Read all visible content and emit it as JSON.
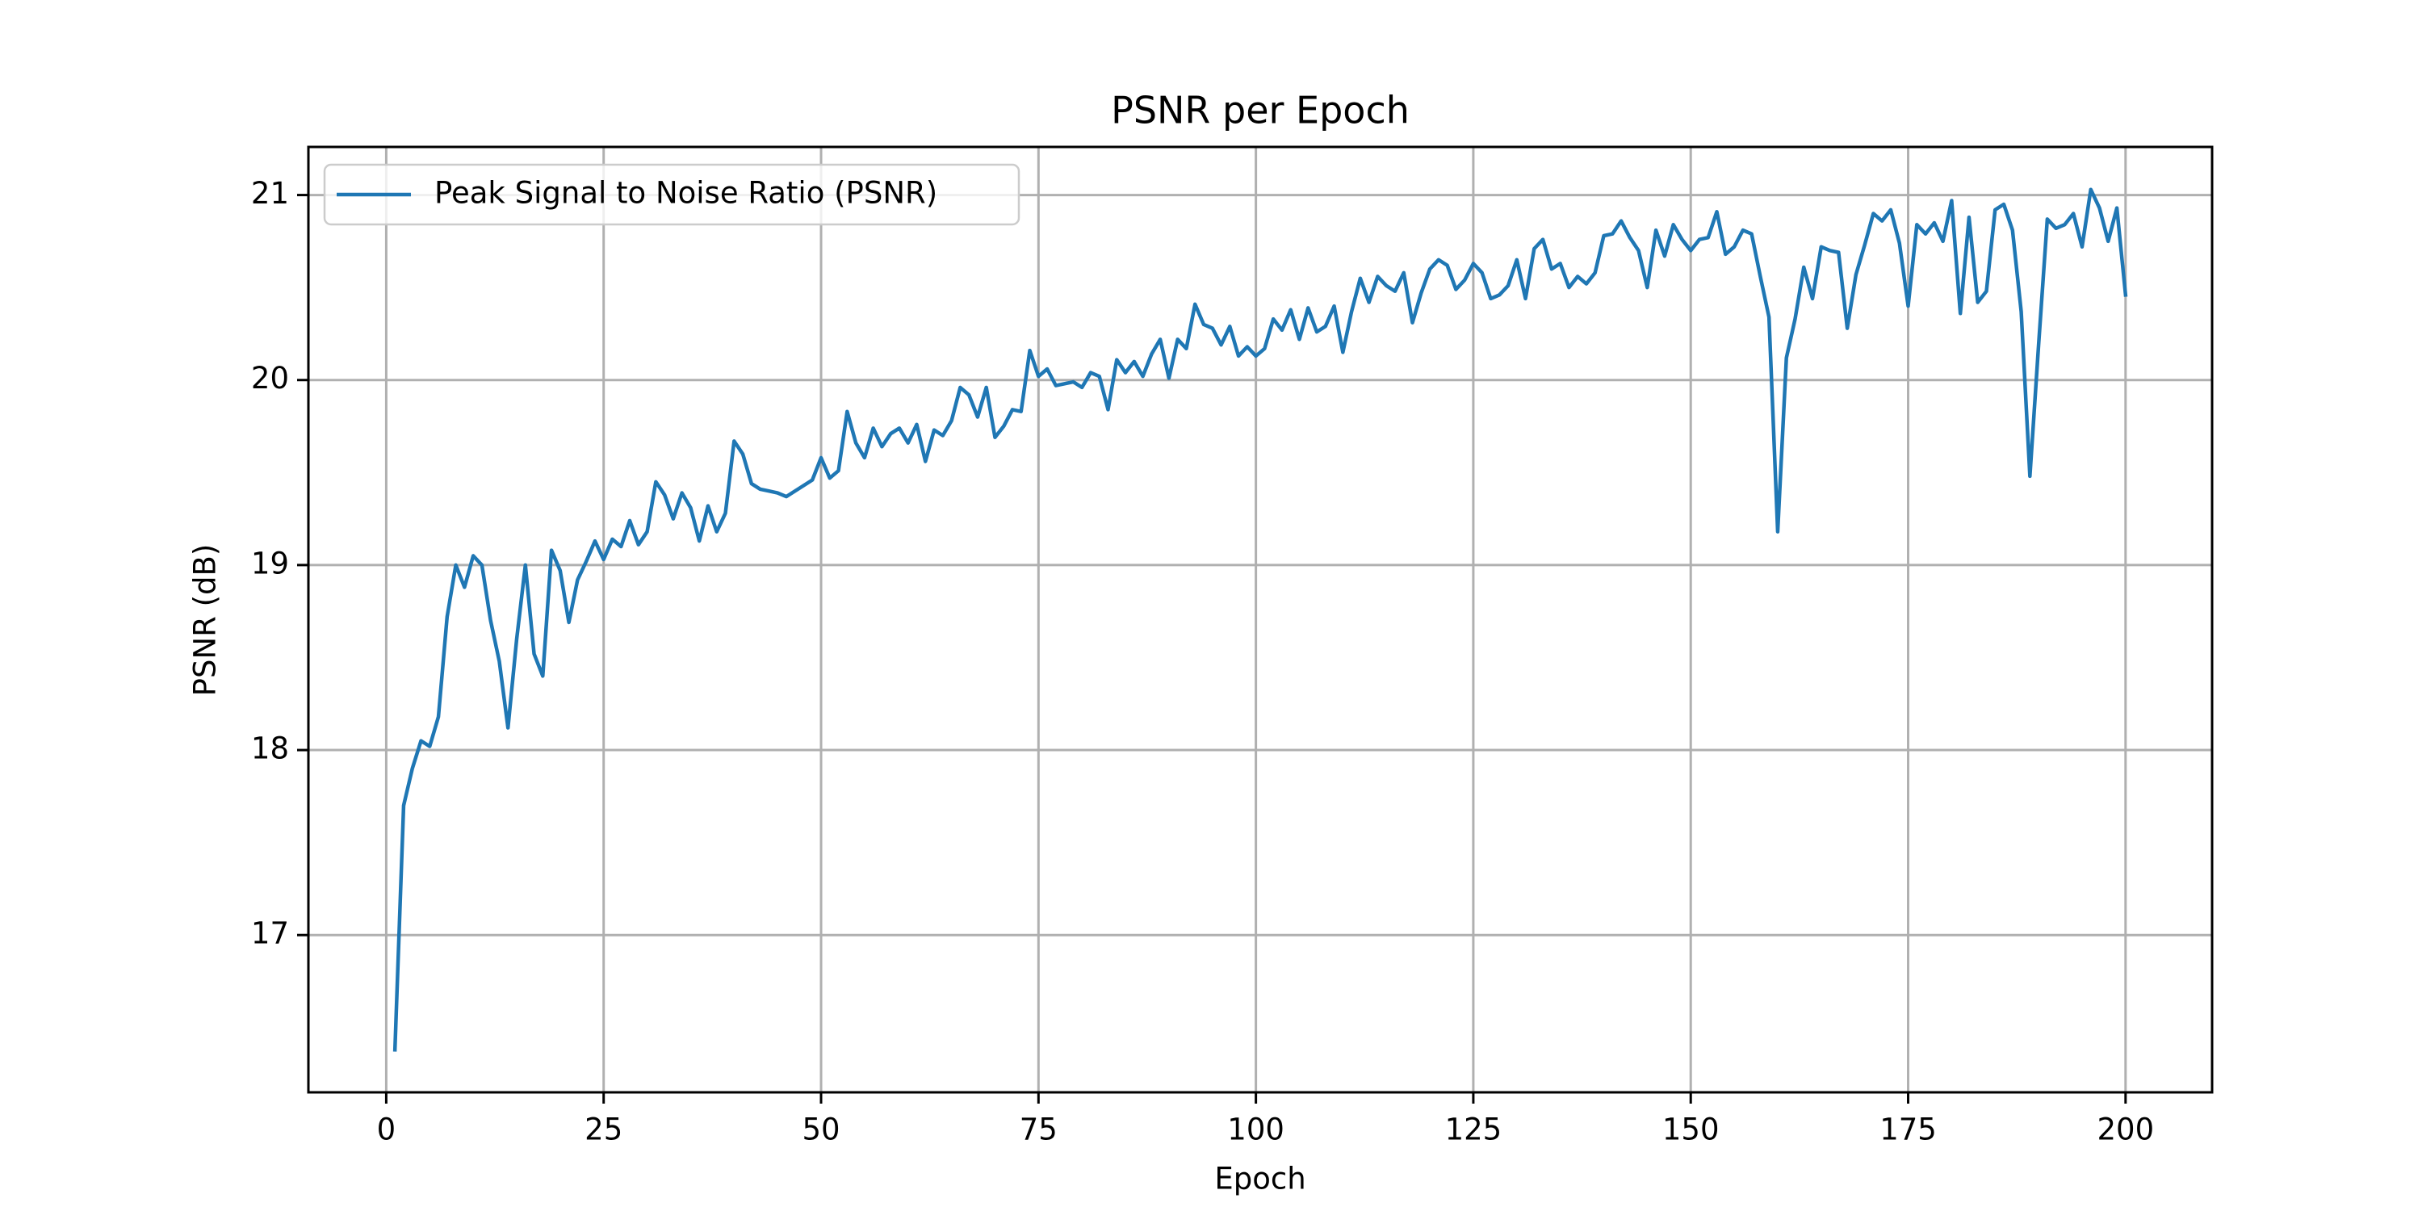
{
  "chart_data": {
    "type": "line",
    "title": "PSNR per Epoch",
    "x_label": "Epoch",
    "y_label": "PSNR (dB)",
    "x": [
      1,
      2,
      3,
      4,
      5,
      6,
      7,
      8,
      9,
      10,
      11,
      12,
      13,
      14,
      15,
      16,
      17,
      18,
      19,
      20,
      21,
      22,
      23,
      24,
      25,
      26,
      27,
      28,
      29,
      30,
      31,
      32,
      33,
      34,
      35,
      36,
      37,
      38,
      39,
      40,
      41,
      42,
      43,
      44,
      45,
      46,
      47,
      48,
      49,
      50,
      51,
      52,
      53,
      54,
      55,
      56,
      57,
      58,
      59,
      60,
      61,
      62,
      63,
      64,
      65,
      66,
      67,
      68,
      69,
      70,
      71,
      72,
      73,
      74,
      75,
      76,
      77,
      78,
      79,
      80,
      81,
      82,
      83,
      84,
      85,
      86,
      87,
      88,
      89,
      90,
      91,
      92,
      93,
      94,
      95,
      96,
      97,
      98,
      99,
      100,
      101,
      102,
      103,
      104,
      105,
      106,
      107,
      108,
      109,
      110,
      111,
      112,
      113,
      114,
      115,
      116,
      117,
      118,
      119,
      120,
      121,
      122,
      123,
      124,
      125,
      126,
      127,
      128,
      129,
      130,
      131,
      132,
      133,
      134,
      135,
      136,
      137,
      138,
      139,
      140,
      141,
      142,
      143,
      144,
      145,
      146,
      147,
      148,
      149,
      150,
      151,
      152,
      153,
      154,
      155,
      156,
      157,
      158,
      159,
      160,
      161,
      162,
      163,
      164,
      165,
      166,
      167,
      168,
      169,
      170,
      171,
      172,
      173,
      174,
      175,
      176,
      177,
      178,
      179,
      180,
      181,
      182,
      183,
      184,
      185,
      186,
      187,
      188,
      189,
      190,
      191,
      192,
      193,
      194,
      195,
      196,
      197,
      198,
      199,
      200
    ],
    "series": [
      {
        "name": "Peak Signal to Noise Ratio (PSNR)",
        "color": "#1f77b4",
        "values": [
          16.38,
          17.7,
          17.9,
          18.05,
          18.02,
          18.18,
          18.72,
          19.0,
          18.88,
          19.05,
          19.0,
          18.7,
          18.48,
          18.12,
          18.6,
          19.0,
          18.52,
          18.4,
          19.08,
          18.97,
          18.69,
          18.92,
          19.02,
          19.13,
          19.03,
          19.14,
          19.1,
          19.24,
          19.11,
          19.18,
          19.45,
          19.38,
          19.25,
          19.39,
          19.31,
          19.13,
          19.32,
          19.18,
          19.28,
          19.67,
          19.6,
          19.44,
          19.41,
          19.4,
          19.39,
          19.37,
          19.4,
          19.43,
          19.46,
          19.58,
          19.47,
          19.51,
          19.83,
          19.66,
          19.58,
          19.74,
          19.64,
          19.71,
          19.74,
          19.66,
          19.76,
          19.56,
          19.73,
          19.7,
          19.78,
          19.96,
          19.92,
          19.8,
          19.96,
          19.69,
          19.75,
          19.84,
          19.83,
          20.16,
          20.02,
          20.06,
          19.97,
          19.98,
          19.99,
          19.96,
          20.04,
          20.02,
          19.84,
          20.11,
          20.04,
          20.1,
          20.02,
          20.14,
          20.22,
          20.01,
          20.22,
          20.17,
          20.41,
          20.3,
          20.28,
          20.19,
          20.29,
          20.13,
          20.18,
          20.13,
          20.17,
          20.33,
          20.27,
          20.38,
          20.22,
          20.39,
          20.26,
          20.29,
          20.4,
          20.15,
          20.37,
          20.55,
          20.42,
          20.56,
          20.51,
          20.48,
          20.58,
          20.31,
          20.47,
          20.6,
          20.65,
          20.62,
          20.49,
          20.54,
          20.63,
          20.58,
          20.44,
          20.46,
          20.51,
          20.65,
          20.44,
          20.71,
          20.76,
          20.6,
          20.63,
          20.5,
          20.56,
          20.52,
          20.58,
          20.78,
          20.79,
          20.86,
          20.77,
          20.7,
          20.5,
          20.81,
          20.67,
          20.84,
          20.76,
          20.7,
          20.76,
          20.77,
          20.91,
          20.68,
          20.72,
          20.81,
          20.79,
          20.56,
          20.34,
          19.18,
          20.12,
          20.33,
          20.61,
          20.44,
          20.72,
          20.7,
          20.69,
          20.28,
          20.57,
          20.73,
          20.9,
          20.86,
          20.92,
          20.74,
          20.4,
          20.84,
          20.79,
          20.85,
          20.75,
          20.97,
          20.36,
          20.88,
          20.42,
          20.48,
          20.92,
          20.95,
          20.81,
          20.37,
          19.48,
          20.19,
          20.87,
          20.82,
          20.84,
          20.9,
          20.72,
          21.03,
          20.93,
          20.75,
          20.93,
          20.46
        ]
      }
    ],
    "xlim": [
      -8.95,
      209.95
    ],
    "xticks": [
      0,
      25,
      50,
      75,
      100,
      125,
      150,
      175,
      200
    ],
    "ylim": [
      16.15,
      21.26
    ],
    "yticks": [
      17,
      18,
      19,
      20,
      21
    ],
    "grid": true,
    "legend": "upper left"
  }
}
